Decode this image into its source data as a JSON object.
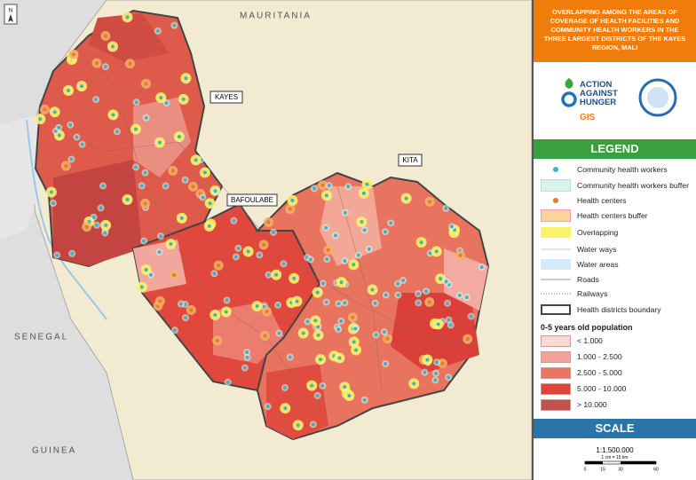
{
  "map": {
    "countries": [
      "MAURITANIA",
      "SENEGAL",
      "GUINEA"
    ],
    "districts": [
      "KAYES",
      "BAFOULABE",
      "KITA"
    ],
    "north": "N"
  },
  "panel": {
    "title": "OVERLAPPING AMONG THE AREAS OF COVERAGE OF HEALTH FACILITIES AND COMMUNITY HEALTH WORKERS IN THE THREE LARGEST DISTRICTS OF THE KAYES REGION, MALI",
    "logo": {
      "org": [
        "ACTION",
        "AGAINST",
        "HUNGER"
      ],
      "unit": "GIS"
    },
    "legend": {
      "heading": "LEGEND",
      "items": [
        "Community health workers",
        "Community health workers buffer",
        "Health centers",
        "Health centers buffer",
        "Overlapping",
        "Water ways",
        "Water areas",
        "Roads",
        "Railways",
        "Health districts boundary"
      ],
      "population_heading": "0-5 years old population",
      "classes": [
        "< 1.000",
        "1.000 - 2.500",
        "2.500 - 5.000",
        "5.000 - 10.000",
        "> 10.000"
      ]
    },
    "scale": {
      "heading": "SCALE",
      "ratio": "1:1.500.000",
      "note": "1 cm = 15 km",
      "ticks": [
        "0",
        "15",
        "30",
        "60"
      ]
    }
  }
}
